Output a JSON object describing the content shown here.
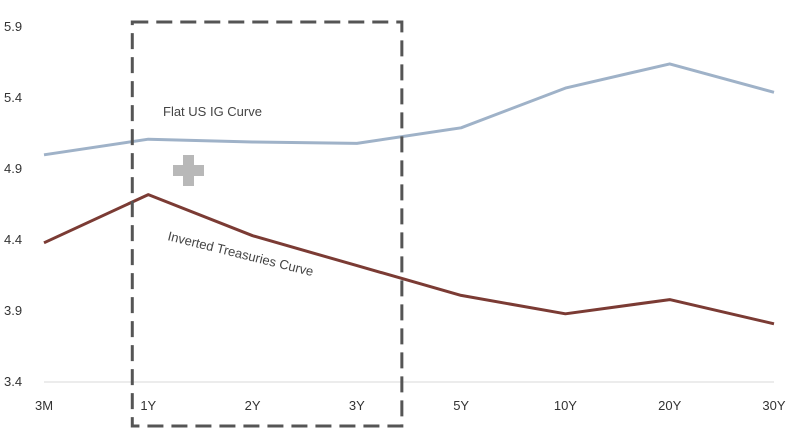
{
  "chart_data": {
    "type": "line",
    "categories": [
      "3M",
      "1Y",
      "2Y",
      "3Y",
      "5Y",
      "10Y",
      "20Y",
      "30Y"
    ],
    "series": [
      {
        "key": "ig",
        "values": [
          5.0,
          5.11,
          5.09,
          5.08,
          5.19,
          5.47,
          5.64,
          5.44
        ],
        "color": "#9fb2c8"
      },
      {
        "key": "tsy",
        "values": [
          4.38,
          4.72,
          4.43,
          4.22,
          4.01,
          3.88,
          3.98,
          3.81
        ],
        "color": "#7b3b34"
      }
    ],
    "annotations": {
      "ig_label": "Flat US IG Curve",
      "tsy_label": "Inverted Treasuries Curve"
    },
    "yticks": [
      "3.4",
      "3.9",
      "4.4",
      "4.9",
      "5.4",
      "5.9"
    ],
    "ylim": [
      3.4,
      5.9
    ],
    "grid": false,
    "legend": "none",
    "highlight": {
      "style": "dashed-box",
      "from_category": "1Y",
      "to_category": "3Y",
      "color": "#555555"
    },
    "marker_icon": "plus-icon",
    "marker_color": "#b8b8b8"
  }
}
